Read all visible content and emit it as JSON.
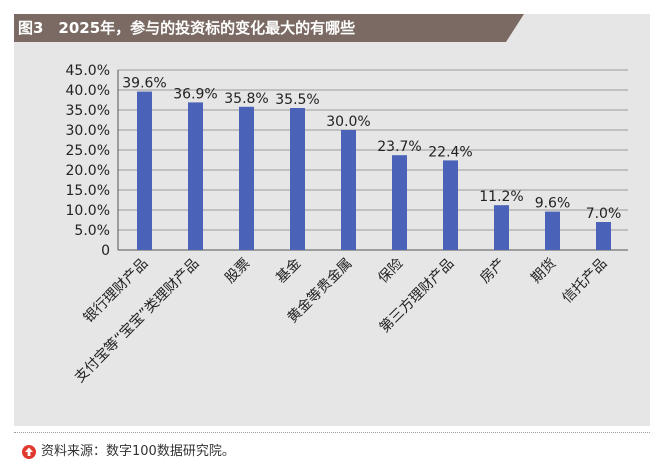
{
  "header": {
    "title": "图3　2025年，参与的投资标的变化最大的有哪些",
    "bg_color": "#7a6a63"
  },
  "footer": {
    "source": "资料来源：数字100数据研究院。",
    "icon": "up-arrow-circle-icon",
    "icon_color": "#e03a2f"
  },
  "chart_data": {
    "type": "bar",
    "categories": [
      "银行理财产品",
      "支付宝等“宝宝”类理财产品",
      "股票",
      "基金",
      "黄金等贵金属",
      "保险",
      "第三方理财产品",
      "房产",
      "期货",
      "信托产品"
    ],
    "values": [
      39.6,
      36.9,
      35.8,
      35.5,
      30.0,
      23.7,
      22.4,
      11.2,
      9.6,
      7.0
    ],
    "data_labels": [
      "39.6%",
      "36.9%",
      "35.8%",
      "35.5%",
      "30.0%",
      "23.7%",
      "22.4%",
      "11.2%",
      "9.6%",
      "7.0%"
    ],
    "y_tick_labels": [
      "0",
      "5.0%",
      "10.0%",
      "15.0%",
      "20.0%",
      "25.0%",
      "30.0%",
      "35.0%",
      "40.0%",
      "45.0%"
    ],
    "ylim": [
      0,
      45
    ],
    "grid": true,
    "bar_color": "#4a62b8"
  }
}
